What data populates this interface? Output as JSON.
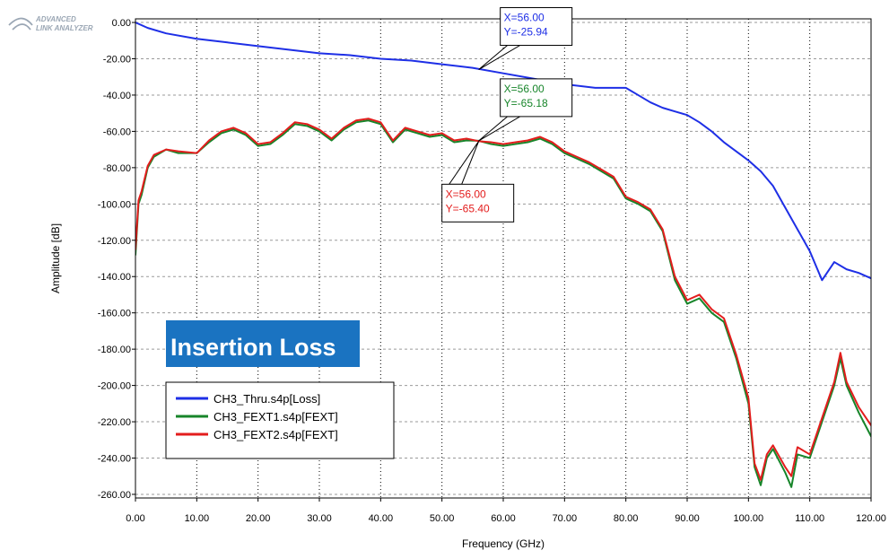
{
  "brand": {
    "line1": "ADVANCED",
    "line2": "LINK ANALYZER",
    "color": "#9aa6b4"
  },
  "overlay_label": {
    "text": "Insertion Loss",
    "bg": "#1a73c1",
    "fg": "#ffffff"
  },
  "chart_data": {
    "type": "line",
    "xlabel": "Frequency (GHz)",
    "ylabel": "Amplitude [dB]",
    "xlim": [
      0,
      120
    ],
    "ylim": [
      -262,
      2
    ],
    "grid": true,
    "x_ticks": [
      0,
      10,
      20,
      30,
      40,
      50,
      60,
      70,
      80,
      90,
      100,
      110,
      120
    ],
    "y_ticks": [
      0,
      -20,
      -40,
      -60,
      -80,
      -100,
      -120,
      -140,
      -160,
      -180,
      -200,
      -220,
      -240,
      -260
    ],
    "x_tick_labels": [
      "0.00",
      "10.00",
      "20.00",
      "30.00",
      "40.00",
      "50.00",
      "60.00",
      "70.00",
      "80.00",
      "90.00",
      "100.00",
      "110.00",
      "120.00"
    ],
    "y_tick_labels": [
      "0.00",
      "-20.00",
      "-40.00",
      "-60.00",
      "-80.00",
      "-100.00",
      "-120.00",
      "-140.00",
      "-160.00",
      "-180.00",
      "-200.00",
      "-220.00",
      "-240.00",
      "-260.00"
    ],
    "legend_position": "bottom-left",
    "series": [
      {
        "name": "CH3_Thru.s4p[Loss]",
        "color": "#1e2fe6",
        "x": [
          0,
          2,
          5,
          10,
          15,
          20,
          25,
          30,
          35,
          40,
          45,
          50,
          55,
          60,
          65,
          70,
          75,
          80,
          82,
          84,
          86,
          88,
          90,
          92,
          94,
          96,
          98,
          100,
          102,
          104,
          106,
          108,
          110,
          112,
          114,
          116,
          118,
          120
        ],
        "values": [
          0,
          -3,
          -6,
          -9,
          -11,
          -13,
          -15,
          -17,
          -18,
          -20,
          -21,
          -23,
          -25,
          -28,
          -31,
          -34,
          -36,
          -36,
          -40,
          -44,
          -47,
          -49,
          -51,
          -55,
          -60,
          -66,
          -71,
          -76,
          -82,
          -90,
          -102,
          -114,
          -126,
          -142,
          -132,
          -136,
          -138,
          -141
        ]
      },
      {
        "name": "CH3_FEXT1.s4p[FEXT]",
        "color": "#17852a",
        "x": [
          0,
          0.5,
          1,
          2,
          3,
          5,
          7,
          10,
          12,
          14,
          16,
          18,
          20,
          22,
          24,
          26,
          28,
          30,
          32,
          34,
          36,
          38,
          40,
          42,
          44,
          46,
          48,
          50,
          52,
          54,
          56,
          58,
          60,
          62,
          64,
          66,
          68,
          70,
          72,
          74,
          76,
          78,
          80,
          82,
          84,
          86,
          88,
          90,
          92,
          94,
          96,
          98,
          100,
          101,
          102,
          103,
          104,
          106,
          107,
          108,
          110,
          112,
          114,
          115,
          116,
          118,
          120
        ],
        "values": [
          -128,
          -100,
          -95,
          -80,
          -74,
          -70,
          -72,
          -72,
          -66,
          -61,
          -59,
          -62,
          -68,
          -67,
          -62,
          -56,
          -57,
          -60,
          -65,
          -59,
          -55,
          -54,
          -56,
          -66,
          -59,
          -61,
          -63,
          -62,
          -66,
          -65,
          -65.18,
          -67,
          -68,
          -67,
          -66,
          -64,
          -67,
          -72,
          -75,
          -78,
          -82,
          -86,
          -97,
          -100,
          -104,
          -115,
          -142,
          -155,
          -152,
          -160,
          -165,
          -185,
          -210,
          -245,
          -255,
          -240,
          -235,
          -248,
          -256,
          -238,
          -240,
          -220,
          -200,
          -185,
          -200,
          -215,
          -228
        ]
      },
      {
        "name": "CH3_FEXT2.s4p[FEXT]",
        "color": "#e31d1d",
        "x": [
          0,
          0.5,
          1,
          2,
          3,
          5,
          7,
          10,
          12,
          14,
          16,
          18,
          20,
          22,
          24,
          26,
          28,
          30,
          32,
          34,
          36,
          38,
          40,
          42,
          44,
          46,
          48,
          50,
          52,
          54,
          56,
          58,
          60,
          62,
          64,
          66,
          68,
          70,
          72,
          74,
          76,
          78,
          80,
          82,
          84,
          86,
          88,
          90,
          92,
          94,
          96,
          98,
          100,
          101,
          102,
          103,
          104,
          106,
          107,
          108,
          110,
          112,
          114,
          115,
          116,
          118,
          120
        ],
        "values": [
          -125,
          -98,
          -93,
          -79,
          -73,
          -70,
          -71,
          -72,
          -65,
          -60,
          -58,
          -61,
          -67,
          -66,
          -61,
          -55,
          -56,
          -59,
          -64,
          -58,
          -54,
          -53,
          -55,
          -65,
          -58,
          -60,
          -62,
          -61,
          -65,
          -64,
          -65.4,
          -66,
          -67,
          -66,
          -65,
          -63,
          -66,
          -71,
          -74,
          -77,
          -81,
          -85,
          -96,
          -99,
          -103,
          -114,
          -140,
          -153,
          -150,
          -158,
          -163,
          -183,
          -207,
          -243,
          -252,
          -238,
          -233,
          -245,
          -250,
          -234,
          -238,
          -218,
          -198,
          -182,
          -198,
          -212,
          -222
        ]
      }
    ],
    "annotations": [
      {
        "x_text": "X=56.00",
        "y_text": "Y=-25.94",
        "color": "#1e2fe6",
        "x": 56,
        "y": -25.94,
        "anchor": "upper-right"
      },
      {
        "x_text": "X=56.00",
        "y_text": "Y=-65.18",
        "color": "#17852a",
        "x": 56,
        "y": -65.18,
        "anchor": "upper-right"
      },
      {
        "x_text": "X=56.00",
        "y_text": "Y=-65.40",
        "color": "#e31d1d",
        "x": 56,
        "y": -65.4,
        "anchor": "lower-left"
      }
    ]
  }
}
